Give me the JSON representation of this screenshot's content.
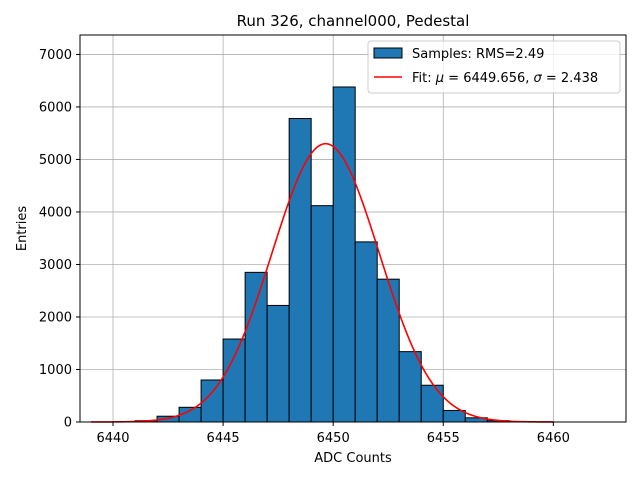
{
  "chart_data": {
    "type": "bar",
    "title": "Run 326, channel000, Pedestal",
    "xlabel": "ADC Counts",
    "ylabel": "Entries",
    "xlim": [
      6438.5,
      6463.3
    ],
    "ylim": [
      0,
      7370
    ],
    "xticks": [
      6440,
      6445,
      6450,
      6455,
      6460
    ],
    "yticks": [
      0,
      1000,
      2000,
      3000,
      4000,
      5000,
      6000,
      7000
    ],
    "grid": true,
    "legend_position": "top-right",
    "colors": {
      "bar_fill": "#1f77b4",
      "bar_edge": "#000000",
      "fit_line": "#ff0000",
      "grid": "#b0b0b0"
    },
    "series": [
      {
        "name": "Samples: RMS=2.49",
        "kind": "histogram",
        "bin_width": 1,
        "bin_left_edges": [
          6440,
          6441,
          6442,
          6443,
          6444,
          6445,
          6446,
          6447,
          6448,
          6449,
          6450,
          6451,
          6452,
          6453,
          6454,
          6455,
          6456,
          6457,
          6458,
          6459
        ],
        "values": [
          5,
          25,
          110,
          280,
          800,
          1580,
          2850,
          2220,
          5780,
          4120,
          6380,
          3430,
          2720,
          1340,
          700,
          220,
          80,
          25,
          8,
          3
        ]
      },
      {
        "name": "Fit: μ = 6449.656, σ = 2.438",
        "name_parts": [
          "Fit: ",
          "μ",
          " = 6449.656, ",
          "σ",
          " = 2.438"
        ],
        "kind": "gaussian",
        "mu": 6449.656,
        "sigma": 2.438,
        "amplitude": 5300,
        "x_range": [
          6439,
          6460
        ]
      }
    ]
  }
}
